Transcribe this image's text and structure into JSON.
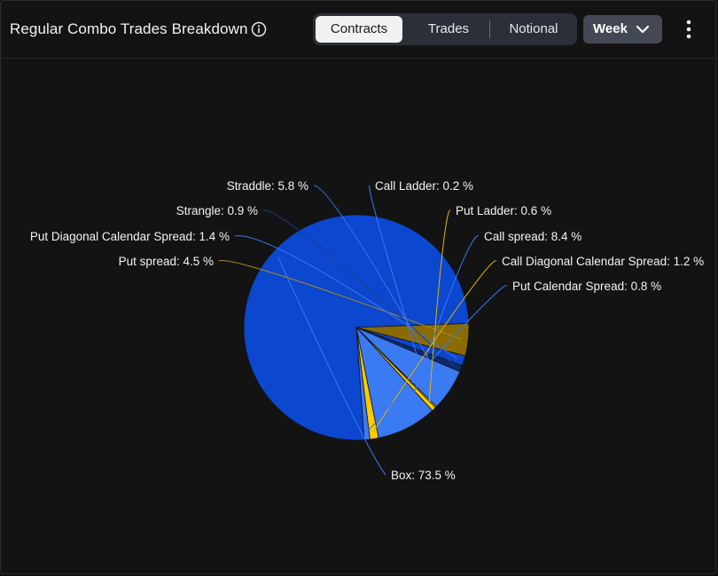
{
  "header": {
    "title": "Regular Combo Trades Breakdown",
    "tabs": [
      "Contracts",
      "Trades",
      "Notional"
    ],
    "active_tab": "Contracts",
    "period": "Week"
  },
  "icons": {
    "info": "info-circle-icon",
    "period_dropdown": "chevron-down-icon",
    "menu": "kebab-menu-icon"
  },
  "colors": {
    "background": "#131313",
    "dark_blue": "#0b47cf",
    "light_blue": "#3a7af2",
    "yellow": "#ffca00",
    "dark_gold": "#8a6b00"
  },
  "chart_data": {
    "type": "pie",
    "title": "",
    "legend": "none",
    "label_format": "{name}: {value} %",
    "slices": [
      {
        "name": "Box",
        "value": 73.5,
        "color": "#0b47cf"
      },
      {
        "name": "Put spread",
        "value": 4.5,
        "color": "#8a6b00"
      },
      {
        "name": "Put Diagonal Calendar Spread",
        "value": 1.4,
        "color": "#0b47cf"
      },
      {
        "name": "Strangle",
        "value": 0.9,
        "color": "#0b2a73"
      },
      {
        "name": "Straddle",
        "value": 5.8,
        "color": "#3a7af2"
      },
      {
        "name": "Call Ladder",
        "value": 0.2,
        "color": "#ffca00"
      },
      {
        "name": "Put Ladder",
        "value": 0.6,
        "color": "#ffca00"
      },
      {
        "name": "Call spread",
        "value": 8.4,
        "color": "#3a7af2"
      },
      {
        "name": "Call Diagonal Calendar Spread",
        "value": 1.2,
        "color": "#ffca00"
      },
      {
        "name": "Put Calendar Spread",
        "value": 0.8,
        "color": "#3a7af2"
      }
    ]
  }
}
